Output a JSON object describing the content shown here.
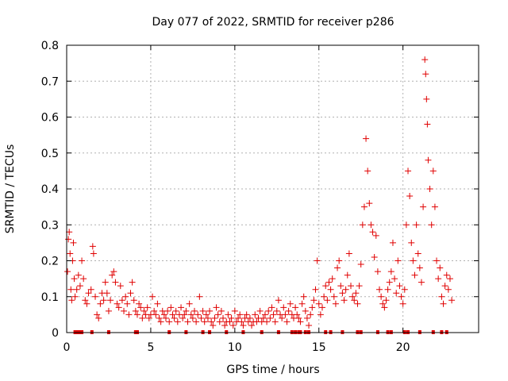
{
  "chart_data": {
    "type": "scatter",
    "title": "Day 077 of 2022, SRMTID for receiver p286",
    "xlabel": "GPS time / hours",
    "ylabel": "SRMTID / TECUs",
    "xlim": [
      0,
      24.5
    ],
    "ylim": [
      0,
      0.8
    ],
    "grid": true,
    "marker": "plus",
    "color": "#e00000",
    "x_ticks": [
      0,
      5,
      10,
      15,
      20
    ],
    "y_ticks": [
      0,
      0.1,
      0.2,
      0.3,
      0.4,
      0.5,
      0.6,
      0.7,
      0.8
    ],
    "x_tick_labels": [
      "0",
      "5",
      "10",
      "15",
      "20"
    ],
    "y_tick_labels": [
      "0",
      "0.1",
      "0.2",
      "0.3",
      "0.4",
      "0.5",
      "0.6",
      "0.7",
      "0.8"
    ],
    "series": [
      {
        "name": "SRMTID",
        "points": [
          [
            0.05,
            0.17
          ],
          [
            0.1,
            0.26
          ],
          [
            0.15,
            0.28
          ],
          [
            0.2,
            0.22
          ],
          [
            0.25,
            0.12
          ],
          [
            0.3,
            0.09
          ],
          [
            0.35,
            0.2
          ],
          [
            0.4,
            0.25
          ],
          [
            0.45,
            0.15
          ],
          [
            0.5,
            0.1
          ],
          [
            0.6,
            0.12
          ],
          [
            0.7,
            0.16
          ],
          [
            0.8,
            0.13
          ],
          [
            0.9,
            0.2
          ],
          [
            1.0,
            0.15
          ],
          [
            1.1,
            0.09
          ],
          [
            1.2,
            0.08
          ],
          [
            1.3,
            0.11
          ],
          [
            1.45,
            0.12
          ],
          [
            1.55,
            0.24
          ],
          [
            1.6,
            0.22
          ],
          [
            1.7,
            0.1
          ],
          [
            1.8,
            0.05
          ],
          [
            1.9,
            0.04
          ],
          [
            2.0,
            0.08
          ],
          [
            2.1,
            0.11
          ],
          [
            2.2,
            0.09
          ],
          [
            2.3,
            0.14
          ],
          [
            2.4,
            0.11
          ],
          [
            2.5,
            0.06
          ],
          [
            2.6,
            0.09
          ],
          [
            2.7,
            0.16
          ],
          [
            2.8,
            0.17
          ],
          [
            2.9,
            0.14
          ],
          [
            3.0,
            0.08
          ],
          [
            3.1,
            0.07
          ],
          [
            3.2,
            0.13
          ],
          [
            3.3,
            0.09
          ],
          [
            3.4,
            0.06
          ],
          [
            3.5,
            0.1
          ],
          [
            3.6,
            0.08
          ],
          [
            3.7,
            0.05
          ],
          [
            3.8,
            0.11
          ],
          [
            3.9,
            0.14
          ],
          [
            4.0,
            0.09
          ],
          [
            4.1,
            0.06
          ],
          [
            4.2,
            0.05
          ],
          [
            4.3,
            0.08
          ],
          [
            4.4,
            0.07
          ],
          [
            4.5,
            0.04
          ],
          [
            4.6,
            0.06
          ],
          [
            4.7,
            0.05
          ],
          [
            4.8,
            0.07
          ],
          [
            4.9,
            0.04
          ],
          [
            5.0,
            0.05
          ],
          [
            5.1,
            0.1
          ],
          [
            5.2,
            0.06
          ],
          [
            5.3,
            0.05
          ],
          [
            5.4,
            0.08
          ],
          [
            5.5,
            0.04
          ],
          [
            5.6,
            0.03
          ],
          [
            5.7,
            0.06
          ],
          [
            5.8,
            0.05
          ],
          [
            5.9,
            0.04
          ],
          [
            6.0,
            0.06
          ],
          [
            6.1,
            0.03
          ],
          [
            6.2,
            0.07
          ],
          [
            6.3,
            0.05
          ],
          [
            6.4,
            0.04
          ],
          [
            6.5,
            0.06
          ],
          [
            6.6,
            0.03
          ],
          [
            6.7,
            0.05
          ],
          [
            6.8,
            0.07
          ],
          [
            6.9,
            0.04
          ],
          [
            7.0,
            0.05
          ],
          [
            7.1,
            0.06
          ],
          [
            7.2,
            0.03
          ],
          [
            7.3,
            0.08
          ],
          [
            7.4,
            0.05
          ],
          [
            7.5,
            0.04
          ],
          [
            7.6,
            0.06
          ],
          [
            7.7,
            0.03
          ],
          [
            7.8,
            0.05
          ],
          [
            7.9,
            0.1
          ],
          [
            8.0,
            0.04
          ],
          [
            8.1,
            0.06
          ],
          [
            8.2,
            0.03
          ],
          [
            8.3,
            0.05
          ],
          [
            8.4,
            0.04
          ],
          [
            8.5,
            0.06
          ],
          [
            8.6,
            0.03
          ],
          [
            8.7,
            0.02
          ],
          [
            8.8,
            0.04
          ],
          [
            8.9,
            0.07
          ],
          [
            9.0,
            0.05
          ],
          [
            9.1,
            0.03
          ],
          [
            9.2,
            0.06
          ],
          [
            9.3,
            0.04
          ],
          [
            9.4,
            0.02
          ],
          [
            9.5,
            0.03
          ],
          [
            9.6,
            0.05
          ],
          [
            9.7,
            0.03
          ],
          [
            9.8,
            0.04
          ],
          [
            9.9,
            0.02
          ],
          [
            10.0,
            0.06
          ],
          [
            10.1,
            0.03
          ],
          [
            10.2,
            0.04
          ],
          [
            10.3,
            0.05
          ],
          [
            10.4,
            0.03
          ],
          [
            10.5,
            0.02
          ],
          [
            10.6,
            0.04
          ],
          [
            10.7,
            0.05
          ],
          [
            10.8,
            0.03
          ],
          [
            10.9,
            0.04
          ],
          [
            11.0,
            0.02
          ],
          [
            11.1,
            0.03
          ],
          [
            11.2,
            0.05
          ],
          [
            11.3,
            0.03
          ],
          [
            11.4,
            0.04
          ],
          [
            11.5,
            0.06
          ],
          [
            11.6,
            0.03
          ],
          [
            11.7,
            0.04
          ],
          [
            11.8,
            0.05
          ],
          [
            11.9,
            0.03
          ],
          [
            12.0,
            0.06
          ],
          [
            12.1,
            0.04
          ],
          [
            12.2,
            0.07
          ],
          [
            12.3,
            0.05
          ],
          [
            12.4,
            0.03
          ],
          [
            12.5,
            0.06
          ],
          [
            12.6,
            0.09
          ],
          [
            12.7,
            0.05
          ],
          [
            12.8,
            0.04
          ],
          [
            12.9,
            0.07
          ],
          [
            13.0,
            0.05
          ],
          [
            13.1,
            0.03
          ],
          [
            13.2,
            0.06
          ],
          [
            13.3,
            0.08
          ],
          [
            13.4,
            0.05
          ],
          [
            13.5,
            0.04
          ],
          [
            13.6,
            0.07
          ],
          [
            13.7,
            0.05
          ],
          [
            13.8,
            0.04
          ],
          [
            13.9,
            0.03
          ],
          [
            14.0,
            0.08
          ],
          [
            14.1,
            0.1
          ],
          [
            14.2,
            0.06
          ],
          [
            14.3,
            0.04
          ],
          [
            14.4,
            0.02
          ],
          [
            14.5,
            0.05
          ],
          [
            14.6,
            0.07
          ],
          [
            14.7,
            0.09
          ],
          [
            14.8,
            0.12
          ],
          [
            14.9,
            0.2
          ],
          [
            15.0,
            0.08
          ],
          [
            15.1,
            0.05
          ],
          [
            15.2,
            0.07
          ],
          [
            15.3,
            0.1
          ],
          [
            15.4,
            0.13
          ],
          [
            15.5,
            0.09
          ],
          [
            15.6,
            0.14
          ],
          [
            15.7,
            0.12
          ],
          [
            15.8,
            0.15
          ],
          [
            15.9,
            0.1
          ],
          [
            16.0,
            0.08
          ],
          [
            16.1,
            0.18
          ],
          [
            16.2,
            0.2
          ],
          [
            16.3,
            0.13
          ],
          [
            16.4,
            0.11
          ],
          [
            16.5,
            0.09
          ],
          [
            16.6,
            0.12
          ],
          [
            16.7,
            0.16
          ],
          [
            16.8,
            0.22
          ],
          [
            16.9,
            0.13
          ],
          [
            17.0,
            0.1
          ],
          [
            17.1,
            0.09
          ],
          [
            17.2,
            0.11
          ],
          [
            17.3,
            0.08
          ],
          [
            17.4,
            0.13
          ],
          [
            17.5,
            0.19
          ],
          [
            17.6,
            0.3
          ],
          [
            17.7,
            0.35
          ],
          [
            17.8,
            0.54
          ],
          [
            17.9,
            0.45
          ],
          [
            18.0,
            0.36
          ],
          [
            18.1,
            0.3
          ],
          [
            18.2,
            0.28
          ],
          [
            18.3,
            0.21
          ],
          [
            18.4,
            0.27
          ],
          [
            18.5,
            0.17
          ],
          [
            18.6,
            0.12
          ],
          [
            18.7,
            0.1
          ],
          [
            18.8,
            0.08
          ],
          [
            18.9,
            0.07
          ],
          [
            19.0,
            0.09
          ],
          [
            19.1,
            0.12
          ],
          [
            19.2,
            0.14
          ],
          [
            19.3,
            0.17
          ],
          [
            19.4,
            0.25
          ],
          [
            19.5,
            0.15
          ],
          [
            19.6,
            0.11
          ],
          [
            19.7,
            0.2
          ],
          [
            19.8,
            0.13
          ],
          [
            19.9,
            0.1
          ],
          [
            20.0,
            0.08
          ],
          [
            20.1,
            0.12
          ],
          [
            20.2,
            0.3
          ],
          [
            20.3,
            0.45
          ],
          [
            20.4,
            0.38
          ],
          [
            20.5,
            0.25
          ],
          [
            20.6,
            0.2
          ],
          [
            20.7,
            0.16
          ],
          [
            20.8,
            0.3
          ],
          [
            20.9,
            0.22
          ],
          [
            21.0,
            0.18
          ],
          [
            21.1,
            0.14
          ],
          [
            21.2,
            0.35
          ],
          [
            21.3,
            0.76
          ],
          [
            21.35,
            0.72
          ],
          [
            21.4,
            0.65
          ],
          [
            21.45,
            0.58
          ],
          [
            21.5,
            0.48
          ],
          [
            21.6,
            0.4
          ],
          [
            21.7,
            0.3
          ],
          [
            21.8,
            0.45
          ],
          [
            21.9,
            0.35
          ],
          [
            22.0,
            0.2
          ],
          [
            22.1,
            0.15
          ],
          [
            22.2,
            0.18
          ],
          [
            22.3,
            0.1
          ],
          [
            22.4,
            0.08
          ],
          [
            22.5,
            0.13
          ],
          [
            22.6,
            0.16
          ],
          [
            22.7,
            0.12
          ],
          [
            22.8,
            0.15
          ],
          [
            22.9,
            0.09
          ]
        ]
      }
    ],
    "gap_markers_x": [
      0.5,
      0.6,
      0.7,
      0.8,
      0.9,
      1.5,
      2.5,
      4.1,
      4.2,
      6.1,
      7.1,
      8.1,
      8.5,
      9.5,
      10.5,
      11.6,
      12.6,
      13.4,
      13.6,
      13.8,
      13.9,
      14.2,
      14.4,
      15.4,
      15.7,
      16.4,
      17.3,
      17.5,
      18.5,
      19.1,
      19.3,
      20.1,
      20.3,
      21.0,
      21.8,
      22.3,
      22.6
    ]
  }
}
